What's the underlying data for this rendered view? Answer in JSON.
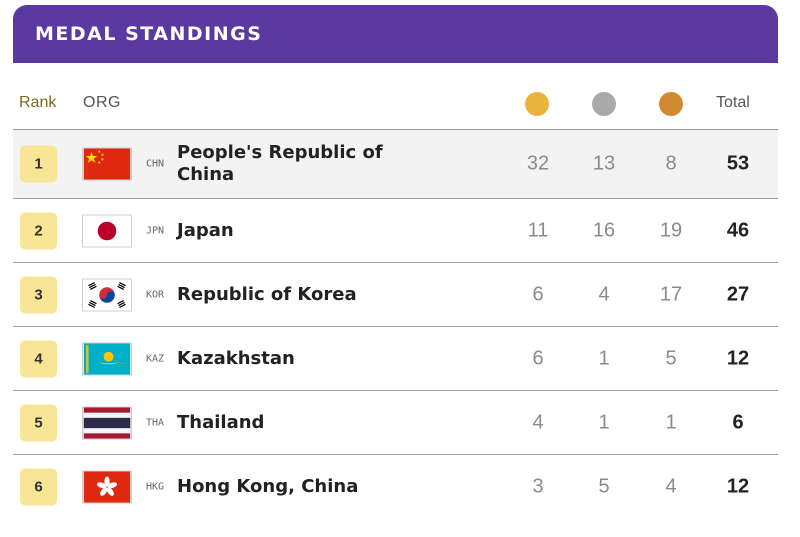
{
  "banner": {
    "title": "MEDAL STANDINGS"
  },
  "header": {
    "rank": "Rank",
    "org": "ORG",
    "total": "Total",
    "medals": [
      {
        "icon": "gold-medal-icon",
        "color": "#e9b33c"
      },
      {
        "icon": "silver-medal-icon",
        "color": "#a9a9a9"
      },
      {
        "icon": "bronze-medal-icon",
        "color": "#d1892f"
      }
    ]
  },
  "colors": {
    "banner": "#5a3aa0",
    "rank_badge": "#f8e596"
  },
  "rows": [
    {
      "rank": "1",
      "code": "CHN",
      "name": "People's Republic of China",
      "gold": "32",
      "silver": "13",
      "bronze": "8",
      "total": "53",
      "flag": "china-flag-icon"
    },
    {
      "rank": "2",
      "code": "JPN",
      "name": "Japan",
      "gold": "11",
      "silver": "16",
      "bronze": "19",
      "total": "46",
      "flag": "japan-flag-icon"
    },
    {
      "rank": "3",
      "code": "KOR",
      "name": "Republic of Korea",
      "gold": "6",
      "silver": "4",
      "bronze": "17",
      "total": "27",
      "flag": "korea-flag-icon"
    },
    {
      "rank": "4",
      "code": "KAZ",
      "name": "Kazakhstan",
      "gold": "6",
      "silver": "1",
      "bronze": "5",
      "total": "12",
      "flag": "kazakhstan-flag-icon"
    },
    {
      "rank": "5",
      "code": "THA",
      "name": "Thailand",
      "gold": "4",
      "silver": "1",
      "bronze": "1",
      "total": "6",
      "flag": "thailand-flag-icon"
    },
    {
      "rank": "6",
      "code": "HKG",
      "name": "Hong Kong, China",
      "gold": "3",
      "silver": "5",
      "bronze": "4",
      "total": "12",
      "flag": "hong-kong-flag-icon"
    }
  ]
}
